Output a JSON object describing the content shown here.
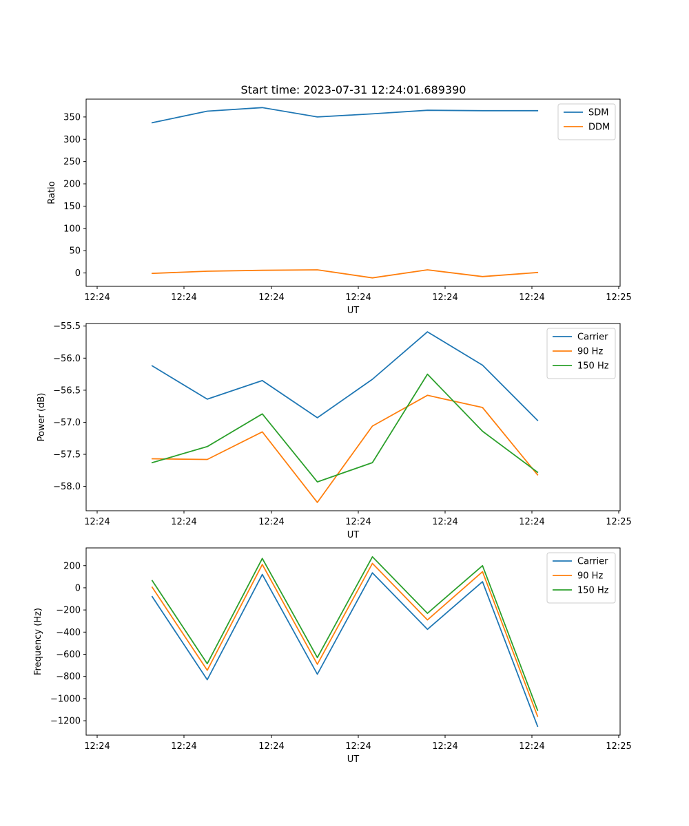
{
  "figure": {
    "title": "Start time: 2023-07-31 12:24:01.689390"
  },
  "chart_data": [
    {
      "type": "line",
      "xlabel": "UT",
      "ylabel": "Ratio",
      "x_tick_labels": [
        "12:24",
        "12:24",
        "12:24",
        "12:24",
        "12:24",
        "12:24",
        "12:25"
      ],
      "xlim": [
        -1.2,
        8.5
      ],
      "ylim": [
        -30,
        390
      ],
      "y_ticks": [
        0,
        50,
        100,
        150,
        200,
        250,
        300,
        350
      ],
      "y_tick_labels": [
        "0",
        "50",
        "100",
        "150",
        "200",
        "250",
        "300",
        "350"
      ],
      "legend": "top-right",
      "grid": false,
      "x": [
        0,
        1,
        2,
        3,
        4,
        5,
        6,
        7
      ],
      "series": [
        {
          "name": "SDM",
          "color": "#1f77b4",
          "values": [
            337,
            363,
            371,
            350,
            357,
            365,
            364,
            364
          ]
        },
        {
          "name": "DDM",
          "color": "#ff7f0e",
          "values": [
            -1,
            4,
            6,
            7,
            -11,
            7,
            -8,
            1
          ]
        }
      ]
    },
    {
      "type": "line",
      "xlabel": "UT",
      "ylabel": "Power (dB)",
      "x_tick_labels": [
        "12:24",
        "12:24",
        "12:24",
        "12:24",
        "12:24",
        "12:24",
        "12:25"
      ],
      "xlim": [
        -1.2,
        8.5
      ],
      "ylim": [
        -58.38,
        -55.46
      ],
      "y_ticks": [
        -58.0,
        -57.5,
        -57.0,
        -56.5,
        -56.0,
        -55.5
      ],
      "y_tick_labels": [
        "−58.0",
        "−57.5",
        "−57.0",
        "−56.5",
        "−56.0",
        "−55.5"
      ],
      "legend": "top-right",
      "grid": false,
      "x": [
        0,
        1,
        2,
        3,
        4,
        5,
        6,
        7
      ],
      "series": [
        {
          "name": "Carrier",
          "color": "#1f77b4",
          "values": [
            -56.12,
            -56.64,
            -56.35,
            -56.93,
            -56.33,
            -55.59,
            -56.11,
            -56.97
          ]
        },
        {
          "name": "90 Hz",
          "color": "#ff7f0e",
          "values": [
            -57.57,
            -57.58,
            -57.15,
            -58.25,
            -57.06,
            -56.58,
            -56.77,
            -57.82
          ]
        },
        {
          "name": "150 Hz",
          "color": "#2ca02c",
          "values": [
            -57.63,
            -57.38,
            -56.87,
            -57.93,
            -57.63,
            -56.25,
            -57.14,
            -57.78
          ]
        }
      ]
    },
    {
      "type": "line",
      "xlabel": "UT",
      "ylabel": "Frequency (Hz)",
      "x_tick_labels": [
        "12:24",
        "12:24",
        "12:24",
        "12:24",
        "12:24",
        "12:24",
        "12:25"
      ],
      "xlim": [
        -1.2,
        8.5
      ],
      "ylim": [
        -1330,
        360
      ],
      "y_ticks": [
        -1200,
        -1000,
        -800,
        -600,
        -400,
        -200,
        0,
        200
      ],
      "y_tick_labels": [
        "−1200",
        "−1000",
        "−800",
        "−600",
        "−400",
        "−200",
        "0",
        "200"
      ],
      "legend": "top-right",
      "grid": false,
      "x": [
        0,
        1,
        2,
        3,
        4,
        5,
        6,
        7
      ],
      "series": [
        {
          "name": "Carrier",
          "color": "#1f77b4",
          "values": [
            -80,
            -830,
            120,
            -780,
            135,
            -375,
            55,
            -1250
          ]
        },
        {
          "name": "90 Hz",
          "color": "#ff7f0e",
          "values": [
            5,
            -745,
            210,
            -690,
            220,
            -290,
            145,
            -1160
          ]
        },
        {
          "name": "150 Hz",
          "color": "#2ca02c",
          "values": [
            65,
            -685,
            265,
            -630,
            280,
            -230,
            200,
            -1105
          ]
        }
      ]
    }
  ]
}
